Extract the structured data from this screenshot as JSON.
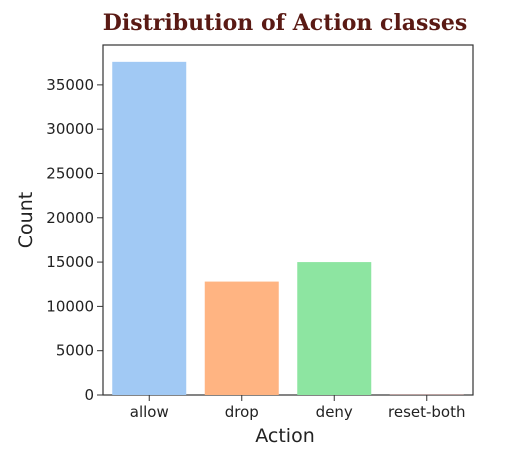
{
  "chart_data": {
    "type": "bar",
    "title": "Distribution of Action classes",
    "xlabel": "Action",
    "ylabel": "Count",
    "categories": [
      "allow",
      "drop",
      "deny",
      "reset-both"
    ],
    "values": [
      37600,
      12800,
      15000,
      30
    ],
    "colors": [
      "#a1c9f4",
      "#ffb482",
      "#8de5a1",
      "#ff9f9b"
    ],
    "ylim": [
      0,
      39500
    ],
    "yticks": [
      0,
      5000,
      10000,
      15000,
      20000,
      25000,
      30000,
      35000
    ],
    "grid": false,
    "legend": "none"
  }
}
